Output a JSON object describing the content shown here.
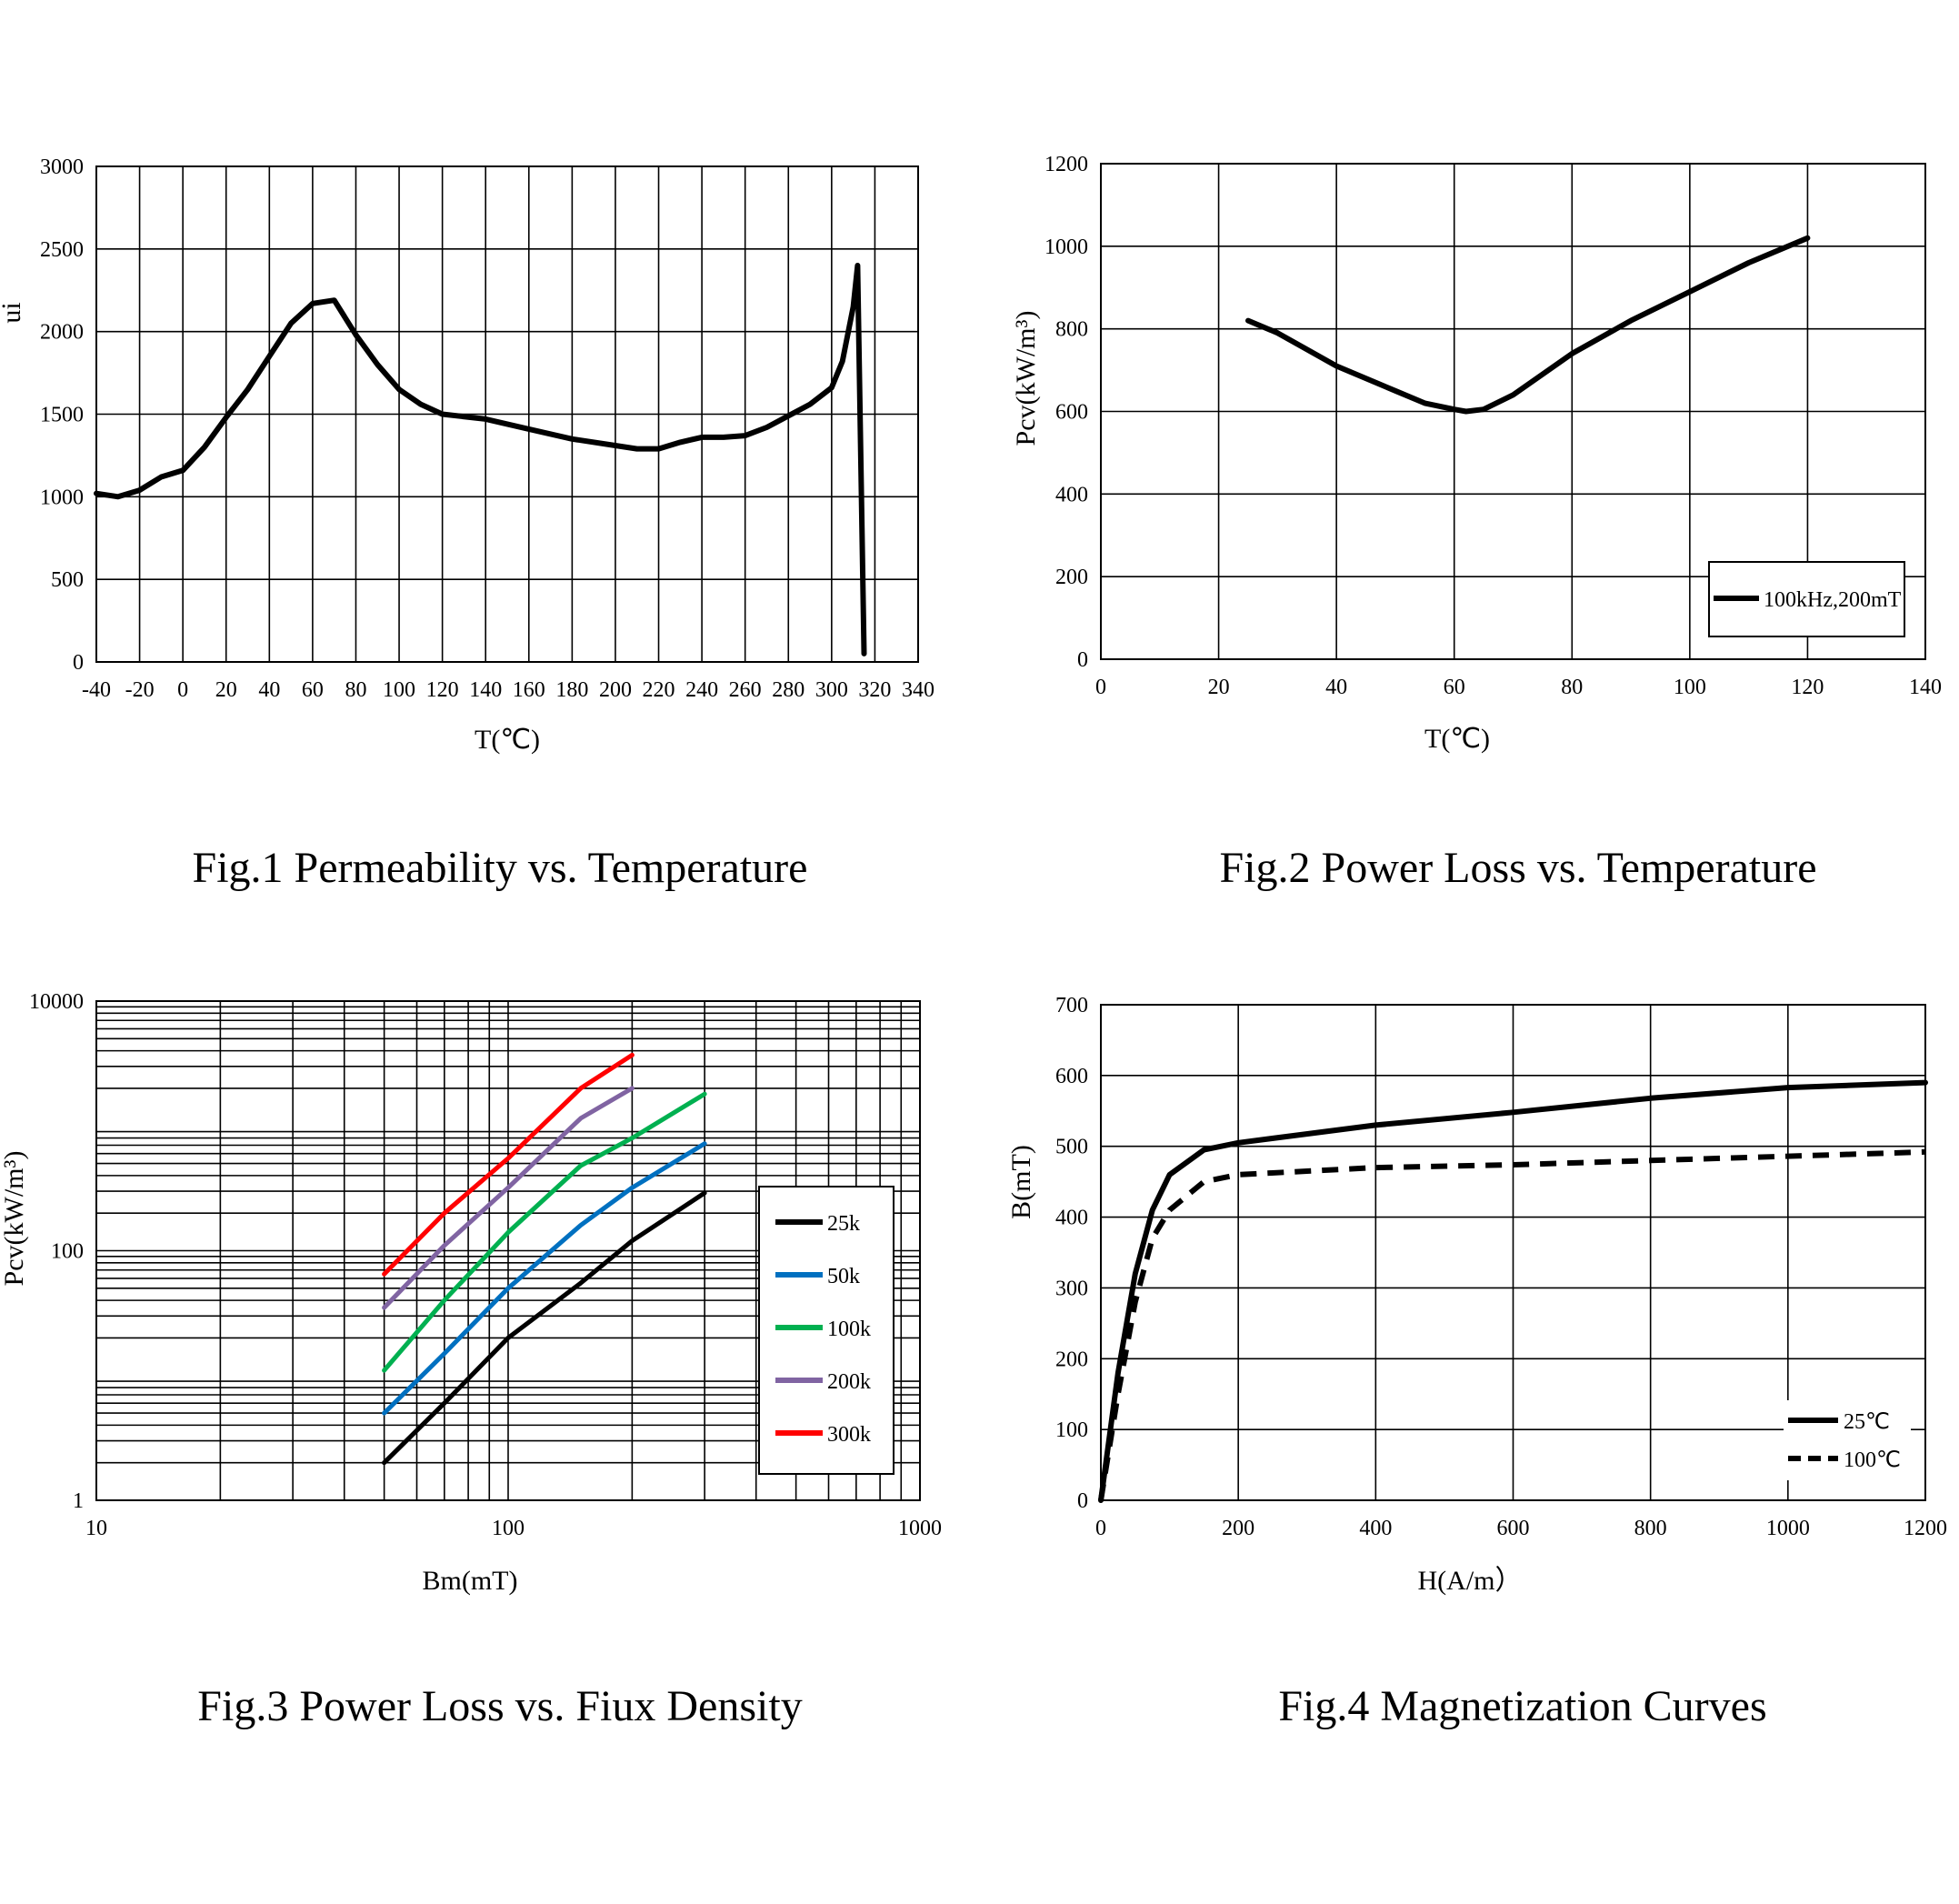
{
  "chart_data": [
    {
      "type": "line",
      "caption": "Fig.1 Permeability vs. Temperature",
      "xlabel": "T(℃)",
      "ylabel": "ui",
      "xlim": [
        -40,
        340
      ],
      "ylim": [
        0,
        3000
      ],
      "xticks": [
        -40,
        -20,
        0,
        20,
        40,
        60,
        80,
        100,
        120,
        140,
        160,
        180,
        200,
        220,
        240,
        260,
        280,
        300,
        320,
        340
      ],
      "yticks": [
        0,
        500,
        1000,
        1500,
        2000,
        2500,
        3000
      ],
      "grid": true,
      "series": [
        {
          "name": "ui",
          "color": "#000000",
          "dash": false,
          "x": [
            -40,
            -30,
            -20,
            -10,
            0,
            10,
            20,
            30,
            40,
            50,
            60,
            70,
            80,
            90,
            100,
            110,
            120,
            140,
            160,
            180,
            200,
            210,
            220,
            230,
            240,
            250,
            260,
            270,
            280,
            290,
            300,
            305,
            310,
            312,
            315
          ],
          "y": [
            1020,
            1000,
            1040,
            1120,
            1160,
            1300,
            1480,
            1650,
            1850,
            2050,
            2170,
            2190,
            1980,
            1800,
            1650,
            1560,
            1500,
            1470,
            1410,
            1350,
            1310,
            1290,
            1290,
            1330,
            1360,
            1360,
            1370,
            1420,
            1490,
            1560,
            1660,
            1820,
            2150,
            2400,
            50
          ]
        }
      ]
    },
    {
      "type": "line",
      "caption": "Fig.2 Power Loss vs. Temperature",
      "xlabel": "T(℃)",
      "ylabel": "Pcv(kW/m³)",
      "xlim": [
        0,
        140
      ],
      "ylim": [
        0,
        1200
      ],
      "xticks": [
        0,
        20,
        40,
        60,
        80,
        100,
        120,
        140
      ],
      "yticks": [
        0,
        200,
        400,
        600,
        800,
        1000,
        1200
      ],
      "grid": true,
      "legend": "bottom-right",
      "series": [
        {
          "name": "100kHz,200mT",
          "color": "#000000",
          "dash": false,
          "x": [
            25,
            30,
            40,
            50,
            55,
            60,
            62,
            65,
            70,
            80,
            90,
            100,
            110,
            120
          ],
          "y": [
            820,
            790,
            710,
            650,
            620,
            605,
            600,
            605,
            640,
            740,
            820,
            890,
            960,
            1020
          ]
        }
      ]
    },
    {
      "type": "line",
      "caption": "Fig.3 Power Loss vs. Fiux Density",
      "xlabel": "Bm(mT)",
      "ylabel": "Pcv(kW/m³)",
      "xscale": "log",
      "yscale": "log",
      "xlim": [
        10,
        1000
      ],
      "ylim": [
        1,
        10000
      ],
      "xticks": [
        10,
        100,
        1000
      ],
      "yticks": [
        1,
        100,
        10000
      ],
      "xtick_labels": [
        "10",
        "100",
        "1000"
      ],
      "ytick_labels": [
        "1",
        "100",
        "10000"
      ],
      "grid": true,
      "legend": "right",
      "series": [
        {
          "name": "25k",
          "color": "#000000",
          "dash": false,
          "x": [
            50,
            70,
            100,
            150,
            200,
            300
          ],
          "y": [
            2,
            6,
            20,
            55,
            120,
            290
          ]
        },
        {
          "name": "50k",
          "color": "#0070c0",
          "dash": false,
          "x": [
            50,
            70,
            100,
            150,
            200,
            300
          ],
          "y": [
            5,
            15,
            50,
            160,
            320,
            720
          ]
        },
        {
          "name": "100k",
          "color": "#00b050",
          "dash": false,
          "x": [
            50,
            70,
            100,
            150,
            200,
            300
          ],
          "y": [
            11,
            40,
            140,
            480,
            800,
            1800
          ]
        },
        {
          "name": "200k",
          "color": "#8064a2",
          "dash": false,
          "x": [
            50,
            70,
            100,
            150,
            200
          ],
          "y": [
            35,
            110,
            320,
            1150,
            2000
          ]
        },
        {
          "name": "300k",
          "color": "#ff0000",
          "dash": false,
          "x": [
            50,
            70,
            100,
            150,
            200
          ],
          "y": [
            65,
            200,
            550,
            2000,
            3700
          ]
        }
      ]
    },
    {
      "type": "line",
      "caption": "Fig.4 Magnetization Curves",
      "xlabel": "H(A/m）",
      "ylabel": "B(mT)",
      "xlim": [
        0,
        1200
      ],
      "ylim": [
        0,
        700
      ],
      "xticks": [
        0,
        200,
        400,
        600,
        800,
        1000,
        1200
      ],
      "yticks": [
        0,
        100,
        200,
        300,
        400,
        500,
        600,
        700
      ],
      "grid": true,
      "legend": "bottom-right",
      "series": [
        {
          "name": "25℃",
          "color": "#000000",
          "dash": false,
          "x": [
            0,
            25,
            50,
            75,
            100,
            150,
            200,
            400,
            600,
            800,
            1000,
            1200
          ],
          "y": [
            0,
            180,
            320,
            410,
            460,
            495,
            505,
            530,
            548,
            568,
            583,
            590
          ]
        },
        {
          "name": "100℃",
          "color": "#000000",
          "dash": true,
          "x": [
            0,
            25,
            50,
            75,
            100,
            150,
            200,
            400,
            600,
            800,
            1000,
            1200
          ],
          "y": [
            0,
            150,
            280,
            370,
            410,
            450,
            460,
            470,
            474,
            480,
            486,
            492
          ]
        }
      ]
    }
  ]
}
